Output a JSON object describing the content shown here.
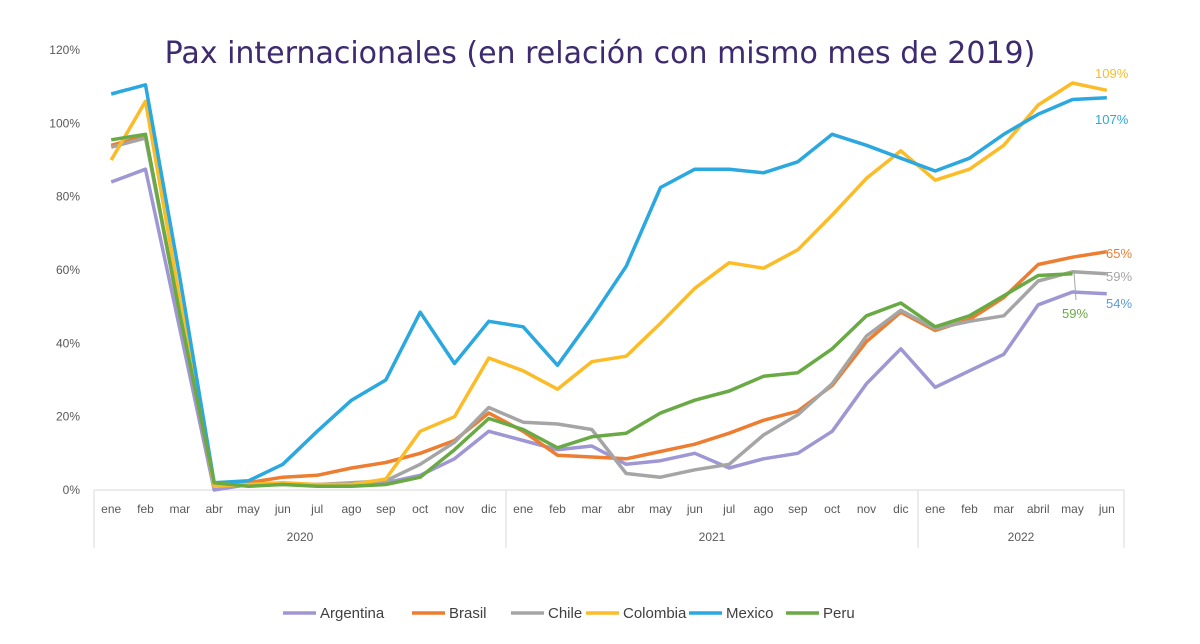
{
  "chart_data": {
    "type": "line",
    "title": "Pax internacionales (en relación con mismo mes de 2019)",
    "xlabel": "",
    "ylabel": "",
    "ylim": [
      0,
      120
    ],
    "yticks": [
      "0%",
      "20%",
      "40%",
      "60%",
      "80%",
      "100%",
      "120%"
    ],
    "grid": false,
    "legend": "bottom",
    "categories": [
      "ene",
      "feb",
      "mar",
      "abr",
      "may",
      "jun",
      "jul",
      "ago",
      "sep",
      "oct",
      "nov",
      "dic",
      "ene",
      "feb",
      "mar",
      "abr",
      "may",
      "jun",
      "jul",
      "ago",
      "sep",
      "oct",
      "nov",
      "dic",
      "ene",
      "feb",
      "mar",
      "abril",
      "may",
      "jun"
    ],
    "year_groups": [
      {
        "label": "2020",
        "count": 12
      },
      {
        "label": "2021",
        "count": 12
      },
      {
        "label": "2022",
        "count": 6
      }
    ],
    "series": [
      {
        "name": "Argentina",
        "color": "#9e97d4",
        "values": [
          84,
          87.5,
          44,
          0,
          1.5,
          1.5,
          1.5,
          1.5,
          2,
          4,
          8.5,
          16,
          13.5,
          11,
          12,
          7,
          8,
          10,
          6,
          8.5,
          10,
          16,
          29,
          38.5,
          28,
          32.5,
          37,
          50.5,
          54,
          53.5
        ],
        "end_label": "54%",
        "end_label_color": "#5b9bd5"
      },
      {
        "name": "Brasil",
        "color": "#ed7d31",
        "values": [
          94,
          96.5,
          48,
          1.5,
          2,
          3.5,
          4,
          6,
          7.5,
          10,
          13.5,
          21,
          16,
          9.5,
          9,
          8.5,
          10.5,
          12.5,
          15.5,
          19,
          21.5,
          28.5,
          40.5,
          48.5,
          43.5,
          46.5,
          52.5,
          61.5,
          63.5,
          65
        ],
        "end_label": "65%",
        "end_label_color": "#ed7d31"
      },
      {
        "name": "Chile",
        "color": "#a5a5a5",
        "values": [
          93.5,
          96,
          48,
          2,
          1.5,
          1.5,
          1.5,
          2,
          2.5,
          7,
          13,
          22.5,
          18.5,
          18,
          16.5,
          4.5,
          3.5,
          5.5,
          7,
          15,
          20.5,
          29,
          42,
          49,
          44,
          46,
          47.5,
          57,
          59.5,
          59
        ],
        "end_label": "59%",
        "end_label_color": "#a5a5a5"
      },
      {
        "name": "Colombia",
        "color": "#fbbc28",
        "values": [
          90,
          106,
          52,
          1,
          1.5,
          2,
          1.5,
          1.5,
          3,
          16,
          20,
          36,
          32.5,
          27.5,
          35,
          36.5,
          45.5,
          55,
          62,
          60.5,
          65.5,
          75,
          85,
          92.5,
          84.5,
          87.5,
          94,
          105,
          111,
          109
        ],
        "end_label": "109%",
        "end_label_color": "#fbbc28"
      },
      {
        "name": "Mexico",
        "color": "#2aa8df",
        "values": [
          108,
          110.5,
          58,
          2,
          2.5,
          7,
          16,
          24.5,
          30,
          48.5,
          34.5,
          46,
          44.5,
          34,
          47,
          61,
          82.5,
          87.5,
          87.5,
          86.5,
          89.5,
          97,
          94,
          90.5,
          87,
          90.5,
          97,
          102.5,
          106.5,
          107
        ],
        "end_label": "107%",
        "end_label_color": "#2aa8df"
      },
      {
        "name": "Peru",
        "color": "#6aaa45",
        "values": [
          95.5,
          97,
          48,
          2,
          1,
          1.5,
          1,
          1,
          1.5,
          3.5,
          11,
          19.5,
          16.5,
          11.5,
          14.5,
          15.5,
          21,
          24.5,
          27,
          31,
          32,
          38.5,
          47.5,
          51,
          44.5,
          47.5,
          53,
          58.5,
          59,
          null
        ],
        "end_label": "59%",
        "end_label_color": "#6aaa45"
      }
    ]
  }
}
